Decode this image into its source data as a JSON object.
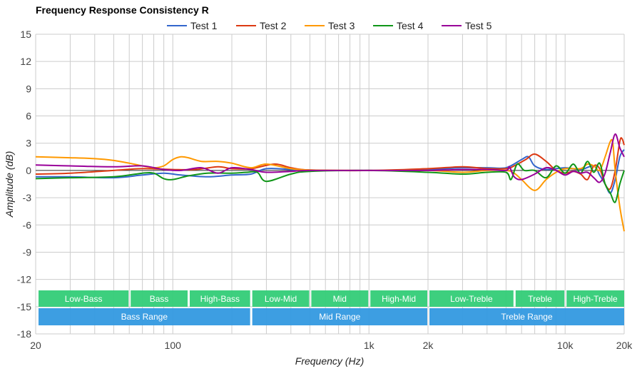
{
  "chart_data": {
    "type": "line",
    "title": "Frequency Response Consistency R",
    "xlabel": "Frequency (Hz)",
    "ylabel": "Amplitude (dB)",
    "xscale": "log",
    "xlim": [
      20,
      20000
    ],
    "ylim": [
      -18,
      15
    ],
    "x_ticks": [
      {
        "value": 20,
        "label": "20"
      },
      {
        "value": 100,
        "label": "100"
      },
      {
        "value": 1000,
        "label": "1k"
      },
      {
        "value": 2000,
        "label": "2k"
      },
      {
        "value": 10000,
        "label": "10k"
      },
      {
        "value": 20000,
        "label": "20k"
      }
    ],
    "y_ticks": [
      15,
      12,
      9,
      6,
      3,
      0,
      -3,
      -6,
      -9,
      -12,
      -15,
      -18
    ],
    "grid": true,
    "legend_position": "top-center",
    "series": [
      {
        "name": "Test 1",
        "color": "#3366cc",
        "points": [
          [
            20,
            -0.7
          ],
          [
            30,
            -0.7
          ],
          [
            50,
            -0.8
          ],
          [
            70,
            -0.5
          ],
          [
            90,
            -0.3
          ],
          [
            110,
            -0.5
          ],
          [
            150,
            -0.7
          ],
          [
            200,
            -0.5
          ],
          [
            250,
            -0.4
          ],
          [
            300,
            0.2
          ],
          [
            400,
            0.1
          ],
          [
            500,
            0
          ],
          [
            1000,
            0
          ],
          [
            2000,
            0.1
          ],
          [
            3000,
            0.3
          ],
          [
            4000,
            0.3
          ],
          [
            5000,
            0.3
          ],
          [
            6000,
            1.2
          ],
          [
            6500,
            1.5
          ],
          [
            7000,
            0.5
          ],
          [
            8000,
            0.1
          ],
          [
            10000,
            0.3
          ],
          [
            12000,
            0.1
          ],
          [
            14000,
            0.5
          ],
          [
            15000,
            -0.5
          ],
          [
            16000,
            -1.5
          ],
          [
            17000,
            -2.5
          ],
          [
            18000,
            -1.0
          ],
          [
            19000,
            1.5
          ],
          [
            20000,
            2.3
          ]
        ]
      },
      {
        "name": "Test 2",
        "color": "#dc3912",
        "points": [
          [
            20,
            -0.4
          ],
          [
            30,
            -0.3
          ],
          [
            50,
            0
          ],
          [
            70,
            0.2
          ],
          [
            100,
            0.1
          ],
          [
            130,
            0.1
          ],
          [
            170,
            0.4
          ],
          [
            200,
            0.2
          ],
          [
            250,
            0.2
          ],
          [
            330,
            0.7
          ],
          [
            400,
            0.3
          ],
          [
            500,
            0.05
          ],
          [
            1000,
            0
          ],
          [
            2000,
            0.2
          ],
          [
            3000,
            0.4
          ],
          [
            4000,
            0.2
          ],
          [
            5000,
            0.2
          ],
          [
            5500,
            0.5
          ],
          [
            6300,
            1.2
          ],
          [
            7000,
            1.8
          ],
          [
            8000,
            1.0
          ],
          [
            9000,
            0
          ],
          [
            10000,
            -0.3
          ],
          [
            11000,
            -0.1
          ],
          [
            12000,
            -0.4
          ],
          [
            13000,
            -1.0
          ],
          [
            14000,
            0.5
          ],
          [
            15000,
            0.2
          ],
          [
            16000,
            -1.5
          ],
          [
            17000,
            -2.0
          ],
          [
            18000,
            0
          ],
          [
            19000,
            3.2
          ],
          [
            19500,
            3.5
          ],
          [
            20000,
            2.8
          ]
        ]
      },
      {
        "name": "Test 3",
        "color": "#ff9900",
        "points": [
          [
            20,
            1.5
          ],
          [
            30,
            1.4
          ],
          [
            40,
            1.3
          ],
          [
            50,
            1.1
          ],
          [
            60,
            0.8
          ],
          [
            70,
            0.5
          ],
          [
            80,
            0.3
          ],
          [
            90,
            0.5
          ],
          [
            100,
            1.2
          ],
          [
            110,
            1.5
          ],
          [
            120,
            1.4
          ],
          [
            140,
            1.0
          ],
          [
            170,
            1.0
          ],
          [
            200,
            0.8
          ],
          [
            250,
            0.3
          ],
          [
            300,
            0.7
          ],
          [
            400,
            0.2
          ],
          [
            500,
            0.05
          ],
          [
            1000,
            0
          ],
          [
            2000,
            0
          ],
          [
            3000,
            -0.2
          ],
          [
            4000,
            0
          ],
          [
            5000,
            0
          ],
          [
            5500,
            -0.3
          ],
          [
            6000,
            -1.0
          ],
          [
            7000,
            -2.2
          ],
          [
            8000,
            -1.0
          ],
          [
            9000,
            -0.2
          ],
          [
            10000,
            0.2
          ],
          [
            12000,
            0.2
          ],
          [
            13000,
            0.7
          ],
          [
            14000,
            0.5
          ],
          [
            15000,
            0
          ],
          [
            16000,
            1.5
          ],
          [
            17000,
            3.2
          ],
          [
            17500,
            3.0
          ],
          [
            18000,
            0
          ],
          [
            19000,
            -4.0
          ],
          [
            20000,
            -6.7
          ]
        ]
      },
      {
        "name": "Test 4",
        "color": "#109618",
        "points": [
          [
            20,
            -0.9
          ],
          [
            30,
            -0.8
          ],
          [
            50,
            -0.7
          ],
          [
            70,
            -0.3
          ],
          [
            80,
            -0.3
          ],
          [
            90,
            -0.9
          ],
          [
            100,
            -1.0
          ],
          [
            120,
            -0.6
          ],
          [
            150,
            -0.3
          ],
          [
            200,
            -0.3
          ],
          [
            240,
            -0.2
          ],
          [
            270,
            -0.2
          ],
          [
            300,
            -1.2
          ],
          [
            400,
            -0.4
          ],
          [
            500,
            -0.1
          ],
          [
            1000,
            0
          ],
          [
            2000,
            -0.2
          ],
          [
            3000,
            -0.4
          ],
          [
            4000,
            -0.2
          ],
          [
            5000,
            -0.2
          ],
          [
            5300,
            -1.0
          ],
          [
            5700,
            0.7
          ],
          [
            6200,
            0
          ],
          [
            7000,
            0
          ],
          [
            8000,
            -0.8
          ],
          [
            9000,
            0.5
          ],
          [
            10000,
            -0.3
          ],
          [
            11000,
            0.7
          ],
          [
            12000,
            -0.3
          ],
          [
            13000,
            1.0
          ],
          [
            14000,
            -0.2
          ],
          [
            15000,
            0.8
          ],
          [
            16000,
            -1.5
          ],
          [
            17000,
            -2.5
          ],
          [
            18000,
            -3.5
          ],
          [
            19000,
            -1.5
          ],
          [
            20000,
            0
          ]
        ]
      },
      {
        "name": "Test 5",
        "color": "#990099",
        "points": [
          [
            20,
            0.6
          ],
          [
            30,
            0.5
          ],
          [
            50,
            0.4
          ],
          [
            70,
            0.5
          ],
          [
            90,
            0.1
          ],
          [
            110,
            0
          ],
          [
            140,
            0.3
          ],
          [
            170,
            -0.3
          ],
          [
            200,
            0.3
          ],
          [
            250,
            0.1
          ],
          [
            300,
            -0.2
          ],
          [
            400,
            -0.1
          ],
          [
            500,
            0
          ],
          [
            1000,
            0
          ],
          [
            2000,
            0
          ],
          [
            3000,
            0.1
          ],
          [
            4000,
            0.1
          ],
          [
            5000,
            0
          ],
          [
            5200,
            0.4
          ],
          [
            5500,
            -0.7
          ],
          [
            6000,
            -1.0
          ],
          [
            7000,
            -0.4
          ],
          [
            8000,
            0.3
          ],
          [
            9000,
            0
          ],
          [
            10000,
            -0.5
          ],
          [
            11000,
            -0.1
          ],
          [
            12000,
            -0.3
          ],
          [
            13000,
            -0.2
          ],
          [
            14000,
            -0.8
          ],
          [
            15000,
            -1.3
          ],
          [
            16000,
            -0.3
          ],
          [
            17000,
            2.0
          ],
          [
            18000,
            4.0
          ],
          [
            19000,
            2.5
          ],
          [
            20000,
            1.5
          ]
        ]
      }
    ],
    "bands": [
      {
        "label": "Low-Bass",
        "from": 20,
        "to": 60
      },
      {
        "label": "Bass",
        "from": 60,
        "to": 120
      },
      {
        "label": "High-Bass",
        "from": 120,
        "to": 250
      },
      {
        "label": "Low-Mid",
        "from": 250,
        "to": 500
      },
      {
        "label": "Mid",
        "from": 500,
        "to": 1000
      },
      {
        "label": "High-Mid",
        "from": 1000,
        "to": 2000
      },
      {
        "label": "Low-Treble",
        "from": 2000,
        "to": 5500
      },
      {
        "label": "Treble",
        "from": 5500,
        "to": 10000
      },
      {
        "label": "High-Treble",
        "from": 10000,
        "to": 20000
      }
    ],
    "ranges": [
      {
        "label": "Bass Range",
        "from": 20,
        "to": 250
      },
      {
        "label": "Mid Range",
        "from": 250,
        "to": 2000
      },
      {
        "label": "Treble Range",
        "from": 2000,
        "to": 20000
      }
    ],
    "band_color": "#33cc77",
    "range_color": "#3399e0"
  }
}
